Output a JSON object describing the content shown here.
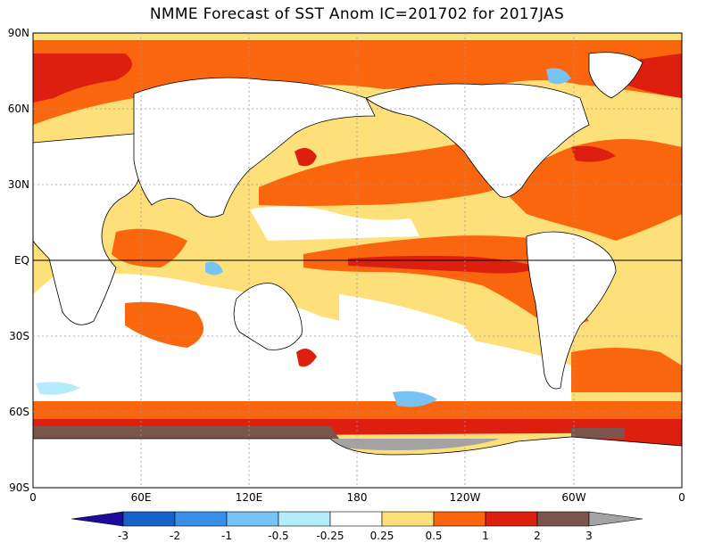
{
  "title": "NMME Forecast of SST Anom  IC=201702 for 2017JAS",
  "lat_labels": [
    "90N",
    "60N",
    "30N",
    "EQ",
    "30S",
    "60S",
    "90S"
  ],
  "lon_labels": [
    "0",
    "60E",
    "120E",
    "180",
    "120W",
    "60W",
    "0"
  ],
  "colorbar": {
    "ticks": [
      "-3",
      "-2",
      "-1",
      "-0.5",
      "-0.25",
      "0.25",
      "0.5",
      "1",
      "2",
      "3"
    ],
    "colors": {
      "below_-3": "#1c0b9c",
      "-3_-2": "#1762c9",
      "-2_-1": "#3a8fe8",
      "-1_-0.5": "#77c3f3",
      "-0.5_-0.25": "#b4ecfb",
      "-0.25_0.25": "#ffffff",
      "0.25_0.5": "#fde07a",
      "0.5_1": "#f9660d",
      "1_2": "#dd1f0f",
      "2_3": "#7b554b",
      "above_3": "#a3a3a3"
    }
  }
}
